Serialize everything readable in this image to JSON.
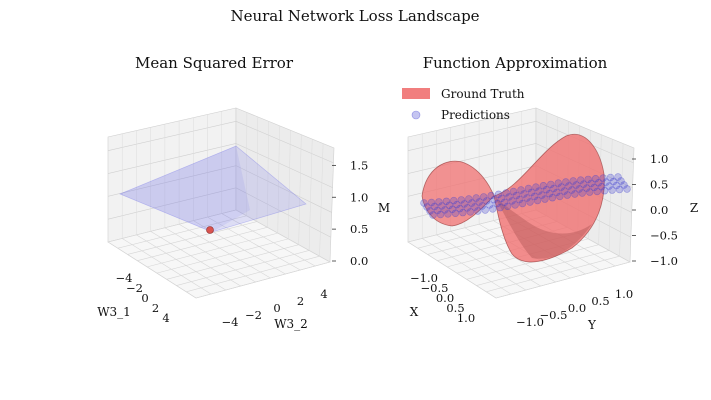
{
  "suptitle": "Neural Network Loss Landscape",
  "colors": {
    "loss_surface": "#6a6ae8",
    "min_point": "#d9534f",
    "ground_truth": "#f07070",
    "ground_truth_edge": "#8b2a2a",
    "predictions": "#4040d0",
    "grid": "#cfcfcf",
    "pane": "#f2f2f2"
  },
  "chart_data": [
    {
      "type": "surface3d",
      "title": "Mean Squared Error",
      "xlabel": "W3_1",
      "ylabel": "W3_2",
      "zlabel": "M",
      "x_ticks": [
        "−4",
        "−2",
        "0",
        "2",
        "4"
      ],
      "y_ticks": [
        "−4",
        "−2",
        "0",
        "2",
        "4"
      ],
      "z_ticks": [
        "0.0",
        "0.5",
        "1.0",
        "1.5"
      ],
      "xlim": [
        -4,
        4
      ],
      "ylim": [
        -4,
        4
      ],
      "zlim": [
        0,
        1.6
      ],
      "minimum_point": {
        "x": 0,
        "y": 0,
        "z": 0.1
      },
      "surface_corner_values": {
        "x_min_y_min": 0.3,
        "x_max_y_min": 0.8,
        "x_min_y_max": 1.5,
        "x_max_y_max": 1.0
      }
    },
    {
      "type": "surface3d_scatter",
      "title": "Function Approximation",
      "xlabel": "X",
      "ylabel": "Y",
      "zlabel": "Z",
      "x_ticks": [
        "−1.0",
        "−0.5",
        "0.0",
        "0.5",
        "1.0"
      ],
      "y_ticks": [
        "−1.0",
        "−0.5",
        "0.0",
        "0.5",
        "1.0"
      ],
      "z_ticks": [
        "−1.0",
        "−0.5",
        "0.0",
        "0.5",
        "1.0"
      ],
      "xlim": [
        -1,
        1
      ],
      "ylim": [
        -1,
        1
      ],
      "zlim": [
        -1,
        1
      ],
      "legend": [
        "Ground Truth",
        "Predictions"
      ],
      "legend_position": "top-left",
      "series": [
        {
          "name": "Ground Truth",
          "kind": "surface"
        },
        {
          "name": "Predictions",
          "kind": "scatter",
          "approx_z": 0.0
        }
      ]
    }
  ]
}
